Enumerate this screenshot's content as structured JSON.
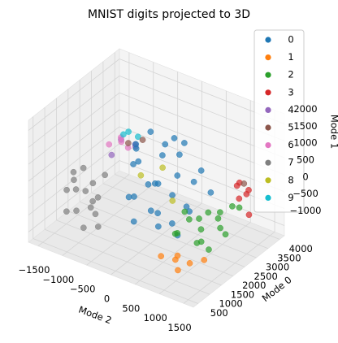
{
  "chart_data": {
    "type": "scatter3d",
    "title": "MNIST digits projected to 3D",
    "xlabel": "Mode 2",
    "ylabel": "Mode 0",
    "zlabel": "Mode 1",
    "xlim": [
      -1700,
      1700
    ],
    "ylim": [
      300,
      4200
    ],
    "zlim": [
      -1300,
      2300
    ],
    "xticks": [
      {
        "value": -1500,
        "label": "−1500"
      },
      {
        "value": -1000,
        "label": "−1000"
      },
      {
        "value": -500,
        "label": "−500"
      },
      0,
      500,
      1000,
      1500
    ],
    "yticks": [
      500,
      1000,
      1500,
      2000,
      2500,
      3000,
      3500,
      4000
    ],
    "zticks": [
      {
        "value": -1000,
        "label": "−1000"
      },
      {
        "value": -500,
        "label": "−500"
      },
      0,
      500,
      1000,
      1500,
      2000
    ],
    "grid": true,
    "legend": "upper right",
    "series": [
      {
        "name": "0",
        "color": "#1f77b4",
        "x": [
          0,
          300,
          -200,
          500,
          100,
          600,
          -300,
          300,
          700,
          0,
          400,
          -100,
          800,
          200,
          -400,
          500,
          100,
          700,
          -200,
          300,
          600,
          -400,
          900,
          200,
          -100,
          1000,
          400,
          -500
        ],
        "y": [
          2000,
          2000,
          1800,
          2200,
          2300,
          1900,
          2100,
          1700,
          2400,
          1900,
          2100,
          2400,
          2000,
          1600,
          1900,
          2500,
          2100,
          1700,
          1700,
          2300,
          2200,
          2200,
          2300,
          2600,
          1500,
          2500,
          1500,
          2300
        ],
        "z": [
          2000,
          1800,
          1500,
          1500,
          1200,
          1100,
          900,
          800,
          700,
          500,
          300,
          200,
          100,
          0,
          -100,
          -200,
          -400,
          -500,
          -600,
          -700,
          1900,
          1300,
          1200,
          1600,
          300,
          500,
          -300,
          600
        ]
      },
      {
        "name": "1",
        "color": "#ff7f0e",
        "x": [
          800,
          1000,
          600,
          1200,
          900,
          700
        ],
        "y": [
          1400,
          1600,
          1200,
          1800,
          1300,
          1700
        ],
        "z": [
          -1000,
          -1100,
          -900,
          -1000,
          -1200,
          -1100
        ]
      },
      {
        "name": "2",
        "color": "#2ca02c",
        "x": [
          800,
          1000,
          1200,
          700,
          900,
          1300,
          1100,
          600,
          1400,
          1000,
          800,
          1200,
          1300,
          700,
          900,
          1100
        ],
        "y": [
          1800,
          2000,
          2400,
          2200,
          2600,
          2800,
          1700,
          1900,
          2300,
          2900,
          2500,
          2000,
          3100,
          1600,
          2300,
          2700
        ],
        "z": [
          200,
          0,
          -100,
          -300,
          -200,
          100,
          -500,
          -600,
          -400,
          -300,
          -700,
          -800,
          -100,
          -400,
          -900,
          -600
        ]
      },
      {
        "name": "3",
        "color": "#d62728",
        "x": [
          1300,
          1400,
          1200,
          1500,
          1300,
          1400
        ],
        "y": [
          3000,
          3200,
          3300,
          3100,
          3500,
          2900
        ],
        "z": [
          600,
          300,
          0,
          -200,
          200,
          800
        ]
      },
      {
        "name": "4",
        "color": "#9467bd",
        "x": [
          -800,
          -600,
          -900,
          -700
        ],
        "y": [
          2400,
          2600,
          2200,
          2800
        ],
        "z": [
          1100,
          900,
          700,
          800
        ]
      },
      {
        "name": "5",
        "color": "#8c564b",
        "x": [
          -700,
          1300,
          -500
        ],
        "y": [
          2500,
          3300,
          2700
        ],
        "z": [
          1000,
          500,
          1100
        ]
      },
      {
        "name": "6",
        "color": "#e377c2",
        "x": [
          -900,
          -1000,
          -700,
          -800
        ],
        "y": [
          2600,
          2300,
          2200,
          2700
        ],
        "z": [
          1000,
          900,
          1200,
          700
        ]
      },
      {
        "name": "7",
        "color": "#7f7f7f",
        "x": [
          -1000,
          -1100,
          -900,
          -1200,
          -800,
          -1000,
          -1300,
          -900,
          -700,
          -1200,
          -1100,
          -800,
          -1300,
          -1000,
          -700,
          -600
        ],
        "y": [
          1200,
          1000,
          1400,
          1300,
          1100,
          1600,
          1100,
          1000,
          1500,
          900,
          1500,
          1300,
          1400,
          900,
          1200,
          1000
        ],
        "z": [
          800,
          500,
          300,
          0,
          -200,
          -400,
          -600,
          -800,
          600,
          200,
          -100,
          -500,
          400,
          -300,
          100,
          -600
        ]
      },
      {
        "name": "8",
        "color": "#bcbd22",
        "x": [
          200,
          500,
          -200
        ],
        "y": [
          2100,
          1900,
          2000
        ],
        "z": [
          1000,
          300,
          600
        ]
      },
      {
        "name": "9",
        "color": "#17becf",
        "x": [
          -600,
          -500,
          -800
        ],
        "y": [
          2300,
          2500,
          2500
        ],
        "z": [
          1500,
          1300,
          1200
        ]
      }
    ]
  }
}
